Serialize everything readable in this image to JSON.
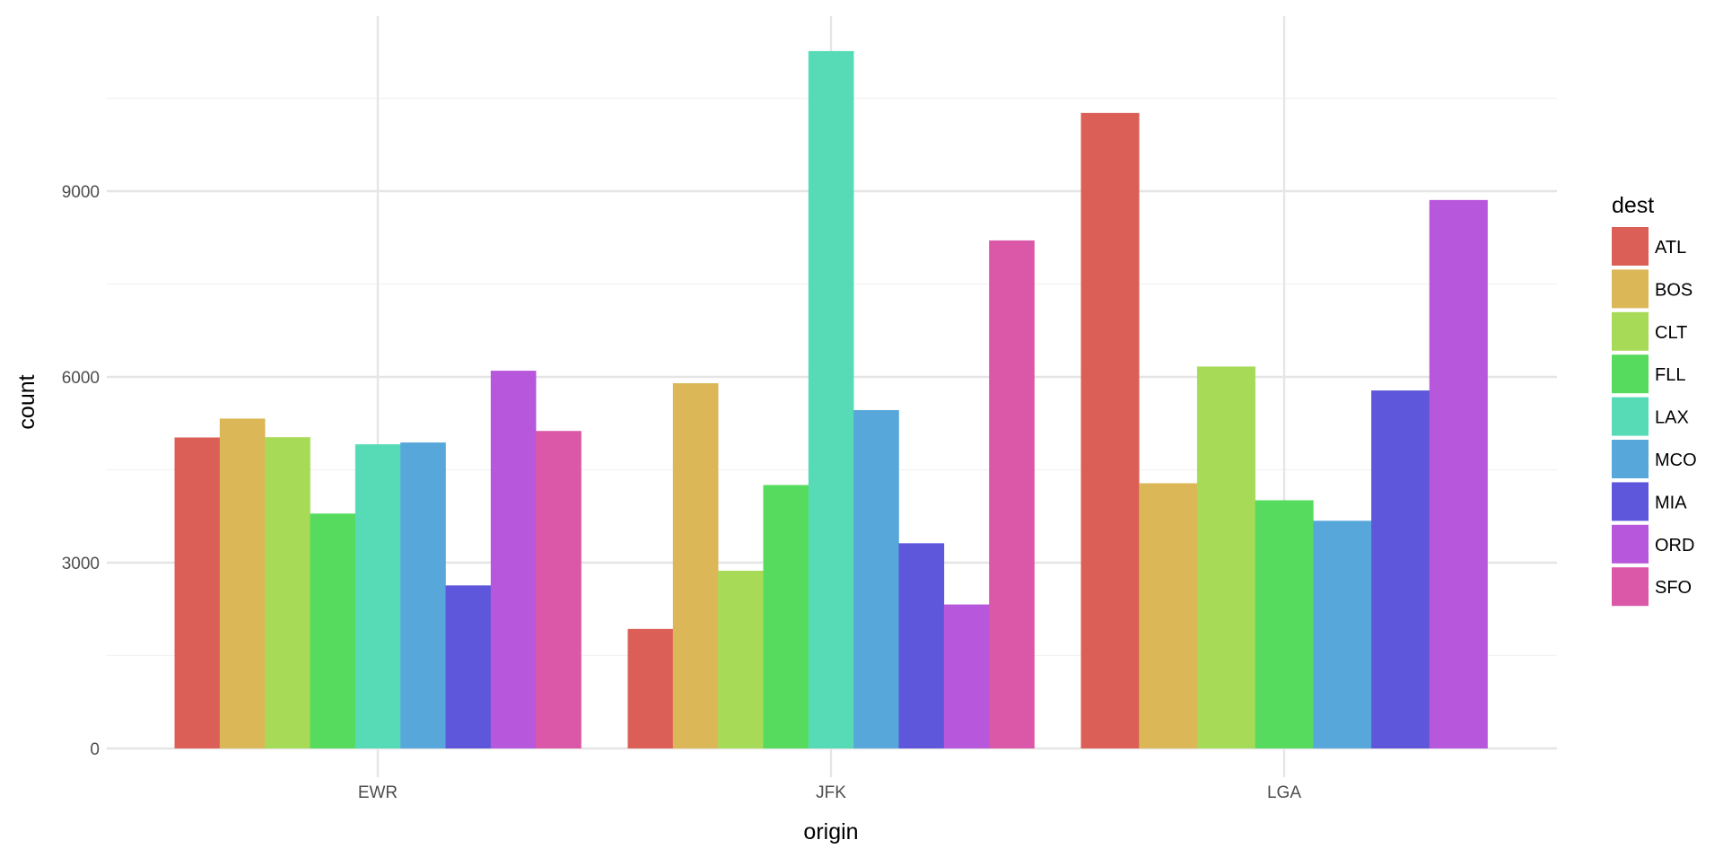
{
  "chart_data": {
    "type": "bar",
    "title": "",
    "xlabel": "origin",
    "ylabel": "count",
    "categories": [
      "EWR",
      "JFK",
      "LGA"
    ],
    "yticks": [
      0,
      3000,
      6000,
      9000
    ],
    "ylim": [
      0,
      11800
    ],
    "grid": true,
    "legend": {
      "title": "dest",
      "placement": "right"
    },
    "series": [
      {
        "name": "ATL",
        "color": "#db5f57",
        "values": [
          5022,
          1930,
          10263
        ]
      },
      {
        "name": "BOS",
        "color": "#dbb757",
        "values": [
          5327,
          5898,
          4283
        ]
      },
      {
        "name": "CLT",
        "color": "#a7db57",
        "values": [
          5026,
          2870,
          6168
        ]
      },
      {
        "name": "FLL",
        "color": "#57db5e",
        "values": [
          3793,
          4254,
          4008
        ]
      },
      {
        "name": "LAX",
        "color": "#57dbb7",
        "values": [
          4912,
          11262,
          null
        ]
      },
      {
        "name": "MCO",
        "color": "#57a7db",
        "values": [
          4941,
          5464,
          3677
        ]
      },
      {
        "name": "MIA",
        "color": "#5e57db",
        "values": [
          2633,
          3314,
          5781
        ]
      },
      {
        "name": "ORD",
        "color": "#b757db",
        "values": [
          6100,
          2325,
          8857
        ]
      },
      {
        "name": "SFO",
        "color": "#db57a7",
        "values": [
          5127,
          8204,
          null
        ]
      }
    ]
  }
}
